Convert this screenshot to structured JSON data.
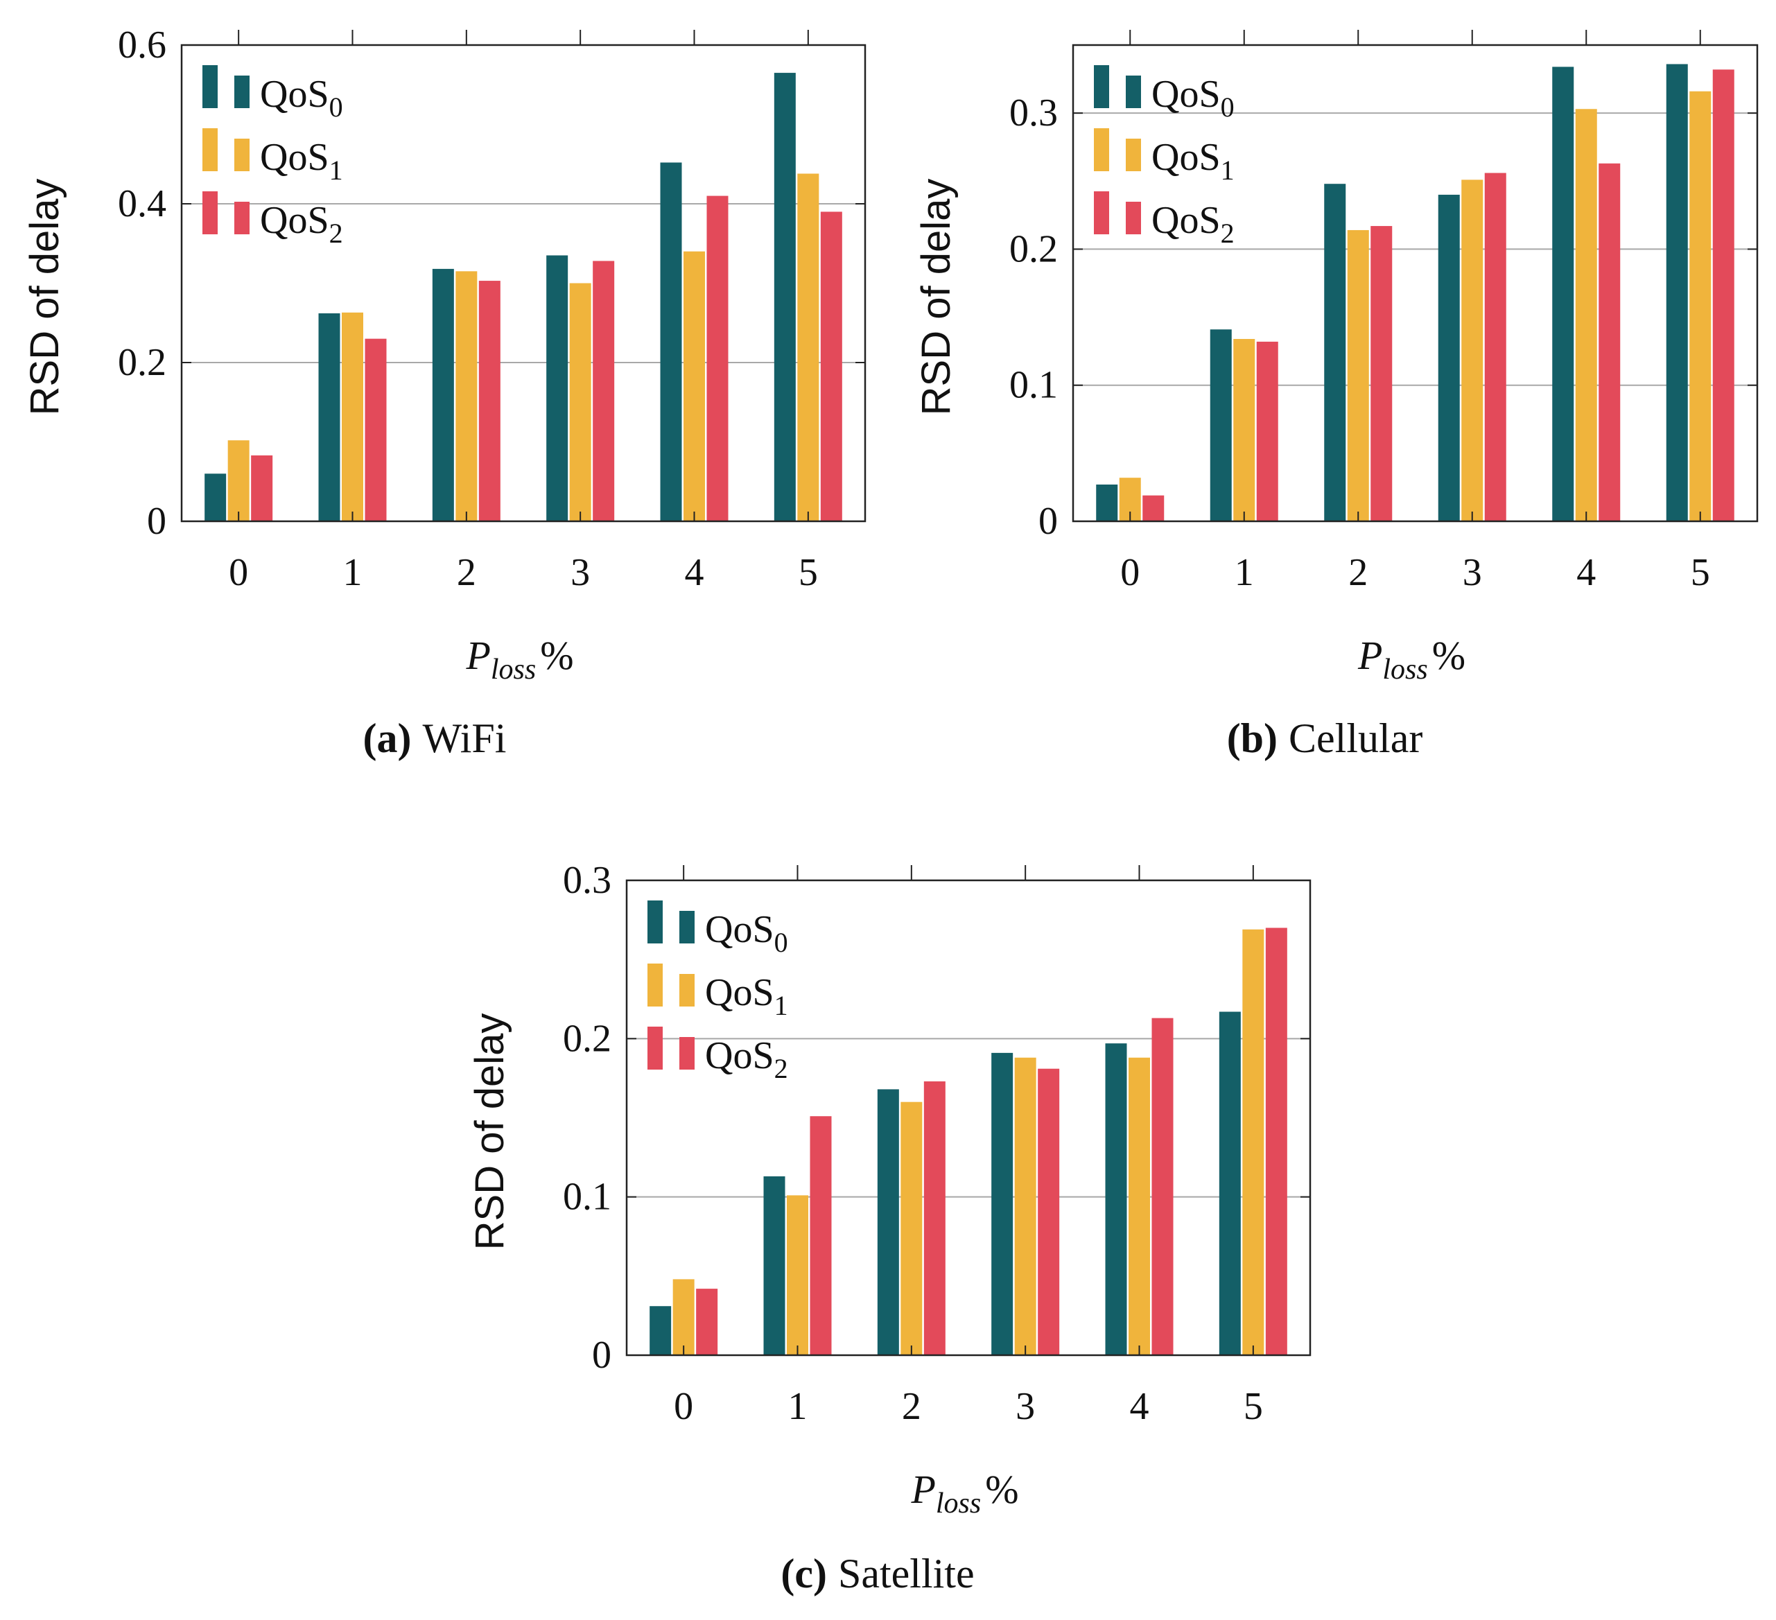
{
  "colors": {
    "QoS0": "#145f67",
    "QoS1": "#f0b43c",
    "QoS2": "#e34a5a",
    "grid": "#a8a8a8",
    "axis": "#222222"
  },
  "chart_data": [
    {
      "type": "bar",
      "caption_tag": "(a)",
      "caption_text": "WiFi",
      "ylabel": "RSD of delay",
      "xlabel_main": "P",
      "xlabel_sub": "loss",
      "xlabel_suffix": "%",
      "categories": [
        "0",
        "1",
        "2",
        "3",
        "4",
        "5"
      ],
      "ylim": [
        0,
        0.6
      ],
      "yticks": [
        0,
        0.2,
        0.4,
        0.6
      ],
      "ytick_labels": [
        "0",
        "0.2",
        "0.4",
        "0.6"
      ],
      "grid": true,
      "legend_position": "top-left",
      "series": [
        {
          "name_main": "QoS",
          "name_sub": "0",
          "color_key": "QoS0",
          "values": [
            0.06,
            0.262,
            0.318,
            0.335,
            0.452,
            0.565
          ]
        },
        {
          "name_main": "QoS",
          "name_sub": "1",
          "color_key": "QoS1",
          "values": [
            0.102,
            0.263,
            0.315,
            0.3,
            0.34,
            0.438
          ]
        },
        {
          "name_main": "QoS",
          "name_sub": "2",
          "color_key": "QoS2",
          "values": [
            0.083,
            0.23,
            0.303,
            0.328,
            0.41,
            0.39
          ]
        }
      ]
    },
    {
      "type": "bar",
      "caption_tag": "(b)",
      "caption_text": "Cellular",
      "ylabel": "RSD of delay",
      "xlabel_main": "P",
      "xlabel_sub": "loss",
      "xlabel_suffix": "%",
      "categories": [
        "0",
        "1",
        "2",
        "3",
        "4",
        "5"
      ],
      "ylim": [
        0,
        0.35
      ],
      "yticks": [
        0,
        0.1,
        0.2,
        0.3
      ],
      "ytick_labels": [
        "0",
        "0.1",
        "0.2",
        "0.3"
      ],
      "grid": true,
      "legend_position": "top-left",
      "series": [
        {
          "name_main": "QoS",
          "name_sub": "0",
          "color_key": "QoS0",
          "values": [
            0.027,
            0.141,
            0.248,
            0.24,
            0.334,
            0.336
          ]
        },
        {
          "name_main": "QoS",
          "name_sub": "1",
          "color_key": "QoS1",
          "values": [
            0.032,
            0.134,
            0.214,
            0.251,
            0.303,
            0.316
          ]
        },
        {
          "name_main": "QoS",
          "name_sub": "2",
          "color_key": "QoS2",
          "values": [
            0.019,
            0.132,
            0.217,
            0.256,
            0.263,
            0.332
          ]
        }
      ]
    },
    {
      "type": "bar",
      "caption_tag": "(c)",
      "caption_text": "Satellite",
      "ylabel": "RSD of delay",
      "xlabel_main": "P",
      "xlabel_sub": "loss",
      "xlabel_suffix": "%",
      "categories": [
        "0",
        "1",
        "2",
        "3",
        "4",
        "5"
      ],
      "ylim": [
        0,
        0.3
      ],
      "yticks": [
        0,
        0.1,
        0.2,
        0.3
      ],
      "ytick_labels": [
        "0",
        "0.1",
        "0.2",
        "0.3"
      ],
      "grid": true,
      "legend_position": "top-left",
      "series": [
        {
          "name_main": "QoS",
          "name_sub": "0",
          "color_key": "QoS0",
          "values": [
            0.031,
            0.113,
            0.168,
            0.191,
            0.197,
            0.217
          ]
        },
        {
          "name_main": "QoS",
          "name_sub": "1",
          "color_key": "QoS1",
          "values": [
            0.048,
            0.101,
            0.16,
            0.188,
            0.188,
            0.269
          ]
        },
        {
          "name_main": "QoS",
          "name_sub": "2",
          "color_key": "QoS2",
          "values": [
            0.042,
            0.151,
            0.173,
            0.181,
            0.213,
            0.27
          ]
        }
      ]
    }
  ]
}
